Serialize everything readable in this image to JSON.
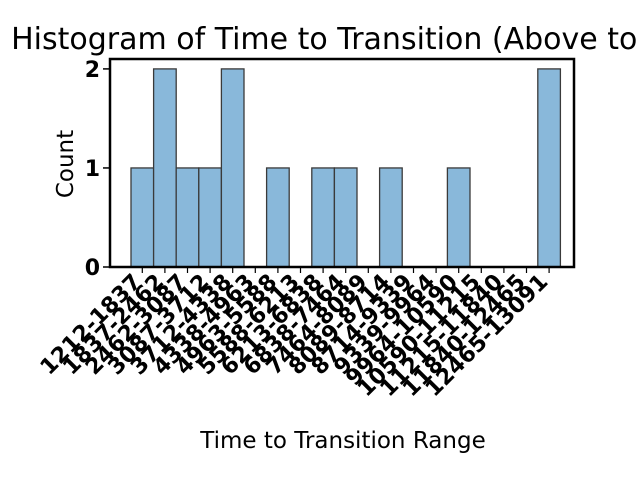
{
  "chart_data": {
    "type": "bar",
    "title": "Histogram of Time to Transition (Above to Below)",
    "xlabel": "Time to Transition Range",
    "ylabel": "Count",
    "categories": [
      "1212-1837",
      "1837-2462",
      "2462-3087",
      "3087-3712",
      "3712-4338",
      "4338-4963",
      "4963-5588",
      "5588-6213",
      "6213-6838",
      "6838-7464",
      "7464-8089",
      "8089-8714",
      "8714-9339",
      "9339-9964",
      "9964-10590",
      "10590-11215",
      "11215-11840",
      "11840-12465",
      "12465-13091"
    ],
    "values": [
      1,
      2,
      1,
      1,
      2,
      0,
      1,
      0,
      1,
      1,
      0,
      1,
      0,
      0,
      1,
      0,
      0,
      0,
      2
    ],
    "yticks": [
      0,
      1,
      2
    ],
    "ylim": [
      0,
      2.1
    ],
    "bar_color": "#89b8da",
    "edge_color": "#3a3a3a",
    "grid": false,
    "legend": "none"
  }
}
